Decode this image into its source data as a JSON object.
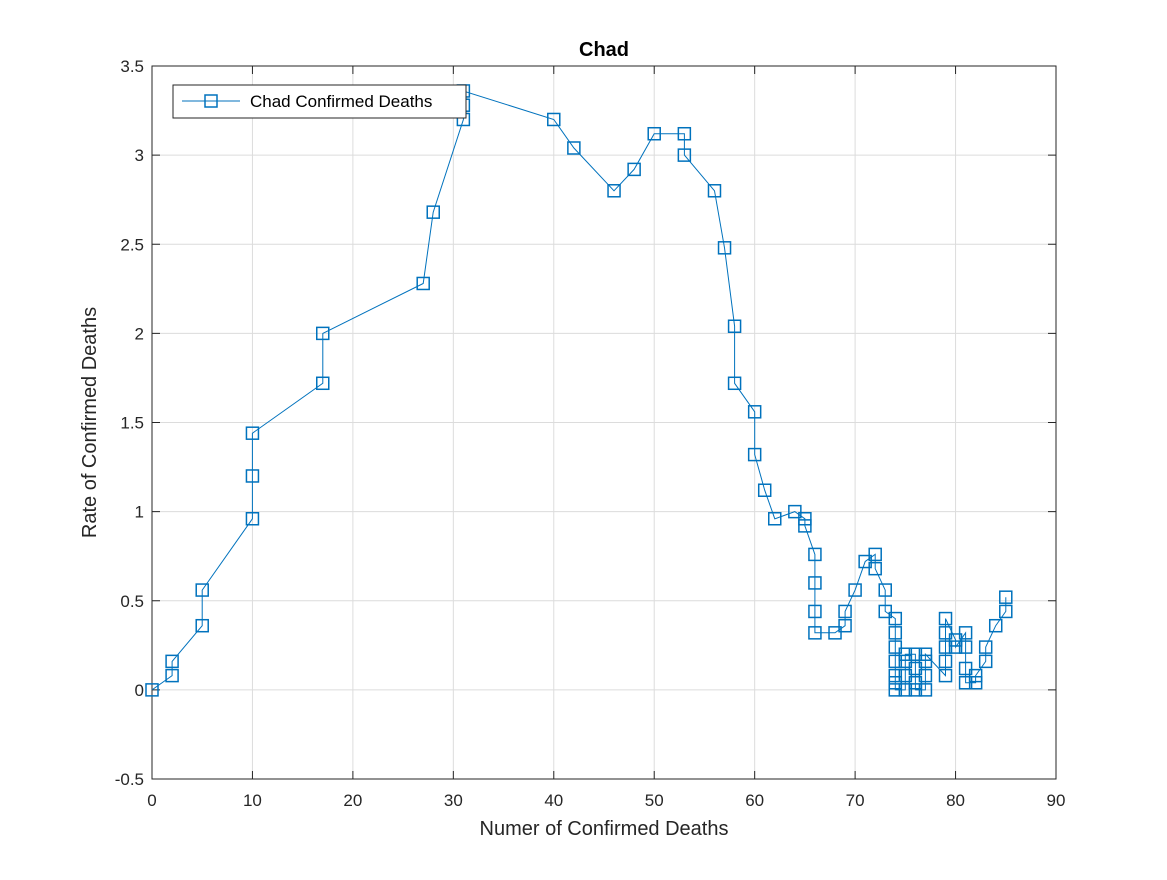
{
  "colors": {
    "series": "#0072BD",
    "grid": "#dcdcdc",
    "axis": "#262626"
  },
  "chart_data": {
    "type": "line",
    "title": "Chad",
    "xlabel": "Numer of Confirmed Deaths",
    "ylabel": "Rate of Confirmed Deaths",
    "xlim": [
      0,
      90
    ],
    "ylim": [
      -0.5,
      3.5
    ],
    "xticks": [
      0,
      10,
      20,
      30,
      40,
      50,
      60,
      70,
      80,
      90
    ],
    "yticks": [
      -0.5,
      0,
      0.5,
      1,
      1.5,
      2,
      2.5,
      3,
      3.5
    ],
    "xtick_labels": [
      "0",
      "10",
      "20",
      "30",
      "40",
      "50",
      "60",
      "70",
      "80",
      "90"
    ],
    "ytick_labels": [
      "-0.5",
      "0",
      "0.5",
      "1",
      "1.5",
      "2",
      "2.5",
      "3",
      "3.5"
    ],
    "grid": true,
    "legend_position": "top-left",
    "marker": "square",
    "series": [
      {
        "name": "Chad Confirmed Deaths",
        "x": [
          0,
          2,
          2,
          5,
          5,
          10,
          10,
          10,
          17,
          17,
          27,
          28,
          31,
          31,
          31,
          40,
          42,
          46,
          48,
          50,
          53,
          53,
          56,
          57,
          58,
          58,
          60,
          60,
          61,
          62,
          64,
          65,
          65,
          66,
          66,
          66,
          66,
          68,
          69,
          69,
          70,
          71,
          72,
          72,
          73,
          73,
          74,
          74,
          74,
          74,
          74,
          74,
          74,
          75,
          75,
          75,
          75,
          76,
          76,
          76,
          76,
          77,
          77,
          77,
          77,
          79,
          79,
          79,
          79,
          79,
          80,
          80,
          81,
          81,
          81,
          81,
          82,
          82,
          83,
          83,
          84,
          85,
          85
        ],
        "y": [
          0,
          0.08,
          0.16,
          0.36,
          0.56,
          0.96,
          1.2,
          1.44,
          1.72,
          2.0,
          2.28,
          2.68,
          3.2,
          3.28,
          3.36,
          3.2,
          3.04,
          2.8,
          2.92,
          3.12,
          3.12,
          3.0,
          2.8,
          2.48,
          2.04,
          1.72,
          1.56,
          1.32,
          1.12,
          0.96,
          1.0,
          0.96,
          0.92,
          0.76,
          0.6,
          0.44,
          0.32,
          0.32,
          0.36,
          0.44,
          0.56,
          0.72,
          0.76,
          0.68,
          0.56,
          0.44,
          0.4,
          0.32,
          0.24,
          0.16,
          0.08,
          0.04,
          0.0,
          0.0,
          0.08,
          0.16,
          0.2,
          0.2,
          0.12,
          0.04,
          0.0,
          0.0,
          0.08,
          0.16,
          0.2,
          0.08,
          0.16,
          0.24,
          0.32,
          0.4,
          0.28,
          0.24,
          0.32,
          0.24,
          0.12,
          0.04,
          0.04,
          0.08,
          0.16,
          0.24,
          0.36,
          0.44,
          0.52
        ]
      }
    ]
  }
}
